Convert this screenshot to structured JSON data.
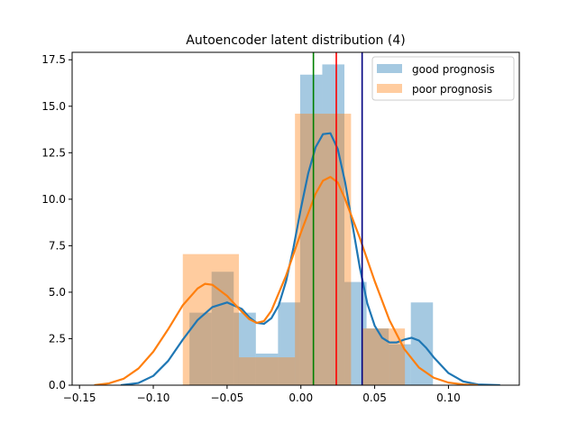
{
  "chart_data": {
    "type": "histogram",
    "title": "Autoencoder latent distribution (4)",
    "xlabel": "",
    "ylabel": "",
    "xlim": [
      -0.155,
      0.148
    ],
    "ylim": [
      0,
      17.9
    ],
    "x_ticks": [
      -0.15,
      -0.1,
      -0.05,
      0.0,
      0.05,
      0.1
    ],
    "x_tick_labels": [
      "−0.15",
      "−0.10",
      "−0.05",
      "0.00",
      "0.05",
      "0.10"
    ],
    "y_ticks": [
      0,
      2.5,
      5,
      7.5,
      10,
      12.5,
      15,
      17.5
    ],
    "y_tick_labels": [
      "0.0",
      "2.5",
      "5.0",
      "7.5",
      "10.0",
      "12.5",
      "15.0",
      "17.5"
    ],
    "grid": false,
    "legend_position": "top-right",
    "histograms": [
      {
        "name": "good prognosis",
        "color": "#1f77b4",
        "alpha": 0.4,
        "bins": [
          {
            "x0": -0.0755,
            "x1": -0.0605,
            "y": 3.9
          },
          {
            "x0": -0.0605,
            "x1": -0.0455,
            "y": 6.1
          },
          {
            "x0": -0.0455,
            "x1": -0.0305,
            "y": 3.9
          },
          {
            "x0": -0.0305,
            "x1": -0.0155,
            "y": 1.7
          },
          {
            "x0": -0.0155,
            "x1": -0.0005,
            "y": 4.45
          },
          {
            "x0": -0.0005,
            "x1": 0.0145,
            "y": 16.7
          },
          {
            "x0": 0.0145,
            "x1": 0.0295,
            "y": 17.25
          },
          {
            "x0": 0.0295,
            "x1": 0.0445,
            "y": 5.55
          },
          {
            "x0": 0.0445,
            "x1": 0.0595,
            "y": 3.05
          },
          {
            "x0": 0.0595,
            "x1": 0.0745,
            "y": 2.2
          },
          {
            "x0": 0.0745,
            "x1": 0.0895,
            "y": 4.45
          }
        ]
      },
      {
        "name": "poor prognosis",
        "color": "#ff7f0e",
        "alpha": 0.4,
        "bins": [
          {
            "x0": -0.08,
            "x1": -0.042,
            "y": 7.05
          },
          {
            "x0": -0.042,
            "x1": -0.004,
            "y": 1.5
          },
          {
            "x0": -0.004,
            "x1": 0.034,
            "y": 14.6
          },
          {
            "x0": 0.034,
            "x1": 0.0415,
            "y": 0
          },
          {
            "x0": 0.0415,
            "x1": 0.0605,
            "y": 3.05
          },
          {
            "x0": 0.0605,
            "x1": 0.0705,
            "y": 3.05
          }
        ]
      }
    ],
    "kde_curves": [
      {
        "name": "good prognosis KDE",
        "color": "#1f77b4",
        "points": [
          [
            -0.122,
            0.0
          ],
          [
            -0.11,
            0.12
          ],
          [
            -0.1,
            0.5
          ],
          [
            -0.09,
            1.3
          ],
          [
            -0.08,
            2.45
          ],
          [
            -0.07,
            3.5
          ],
          [
            -0.06,
            4.2
          ],
          [
            -0.05,
            4.45
          ],
          [
            -0.04,
            4.1
          ],
          [
            -0.035,
            3.65
          ],
          [
            -0.03,
            3.35
          ],
          [
            -0.025,
            3.3
          ],
          [
            -0.02,
            3.6
          ],
          [
            -0.015,
            4.3
          ],
          [
            -0.01,
            5.6
          ],
          [
            -0.005,
            7.4
          ],
          [
            0.0,
            9.5
          ],
          [
            0.005,
            11.4
          ],
          [
            0.01,
            12.8
          ],
          [
            0.015,
            13.5
          ],
          [
            0.02,
            13.55
          ],
          [
            0.025,
            12.7
          ],
          [
            0.03,
            10.9
          ],
          [
            0.035,
            8.6
          ],
          [
            0.04,
            6.3
          ],
          [
            0.045,
            4.4
          ],
          [
            0.05,
            3.2
          ],
          [
            0.055,
            2.55
          ],
          [
            0.06,
            2.3
          ],
          [
            0.065,
            2.3
          ],
          [
            0.07,
            2.45
          ],
          [
            0.075,
            2.55
          ],
          [
            0.08,
            2.4
          ],
          [
            0.085,
            2.0
          ],
          [
            0.09,
            1.5
          ],
          [
            0.1,
            0.65
          ],
          [
            0.11,
            0.2
          ],
          [
            0.12,
            0.04
          ],
          [
            0.135,
            0.0
          ]
        ]
      },
      {
        "name": "poor prognosis KDE",
        "color": "#ff7f0e",
        "points": [
          [
            -0.14,
            0.0
          ],
          [
            -0.13,
            0.1
          ],
          [
            -0.12,
            0.35
          ],
          [
            -0.11,
            0.9
          ],
          [
            -0.1,
            1.8
          ],
          [
            -0.09,
            3.0
          ],
          [
            -0.08,
            4.3
          ],
          [
            -0.07,
            5.2
          ],
          [
            -0.065,
            5.45
          ],
          [
            -0.06,
            5.4
          ],
          [
            -0.05,
            4.8
          ],
          [
            -0.04,
            3.95
          ],
          [
            -0.035,
            3.55
          ],
          [
            -0.03,
            3.35
          ],
          [
            -0.025,
            3.45
          ],
          [
            -0.02,
            4.0
          ],
          [
            -0.01,
            5.9
          ],
          [
            0.0,
            8.2
          ],
          [
            0.01,
            10.3
          ],
          [
            0.015,
            11.0
          ],
          [
            0.02,
            11.2
          ],
          [
            0.025,
            10.9
          ],
          [
            0.03,
            10.0
          ],
          [
            0.04,
            7.9
          ],
          [
            0.05,
            5.6
          ],
          [
            0.06,
            3.5
          ],
          [
            0.07,
            1.95
          ],
          [
            0.08,
            0.95
          ],
          [
            0.09,
            0.4
          ],
          [
            0.1,
            0.14
          ],
          [
            0.11,
            0.04
          ],
          [
            0.12,
            0.0
          ]
        ]
      }
    ],
    "vertical_lines": [
      {
        "x": 0.0085,
        "color": "#008000"
      },
      {
        "x": 0.024,
        "color": "#ff0000"
      },
      {
        "x": 0.0415,
        "color": "#000080"
      }
    ],
    "legend": [
      {
        "label": "good prognosis",
        "color": "#1f77b4",
        "alpha": 0.4
      },
      {
        "label": "poor prognosis",
        "color": "#ff7f0e",
        "alpha": 0.4
      }
    ]
  }
}
